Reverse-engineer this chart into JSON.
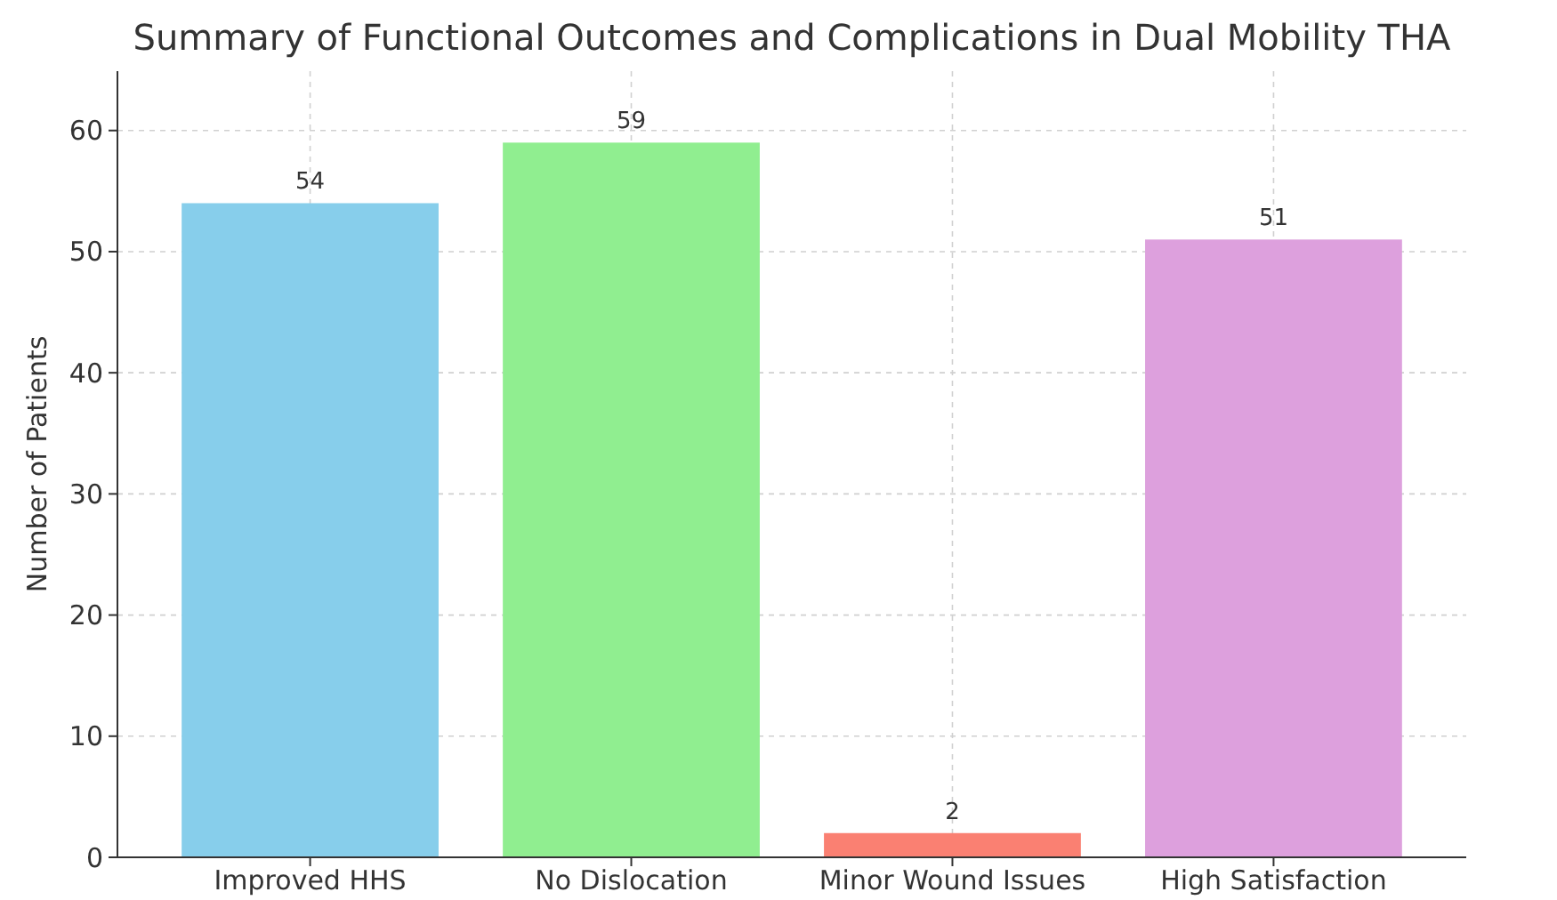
{
  "chart_data": {
    "type": "bar",
    "title": "Summary of Functional Outcomes and Complications in Dual Mobility THA",
    "ylabel": "Number of Patients",
    "categories": [
      "Improved HHS",
      "No Dislocation",
      "Minor Wound Issues",
      "High Satisfaction"
    ],
    "values": [
      54,
      59,
      2,
      51
    ],
    "colors": [
      "#87ceeb",
      "#90ee90",
      "#fa8072",
      "#dda0dd"
    ],
    "ylim": [
      0,
      64.9
    ],
    "yticks": [
      0,
      10,
      20,
      30,
      40,
      50,
      60
    ],
    "grid": true,
    "data_labels": true
  }
}
